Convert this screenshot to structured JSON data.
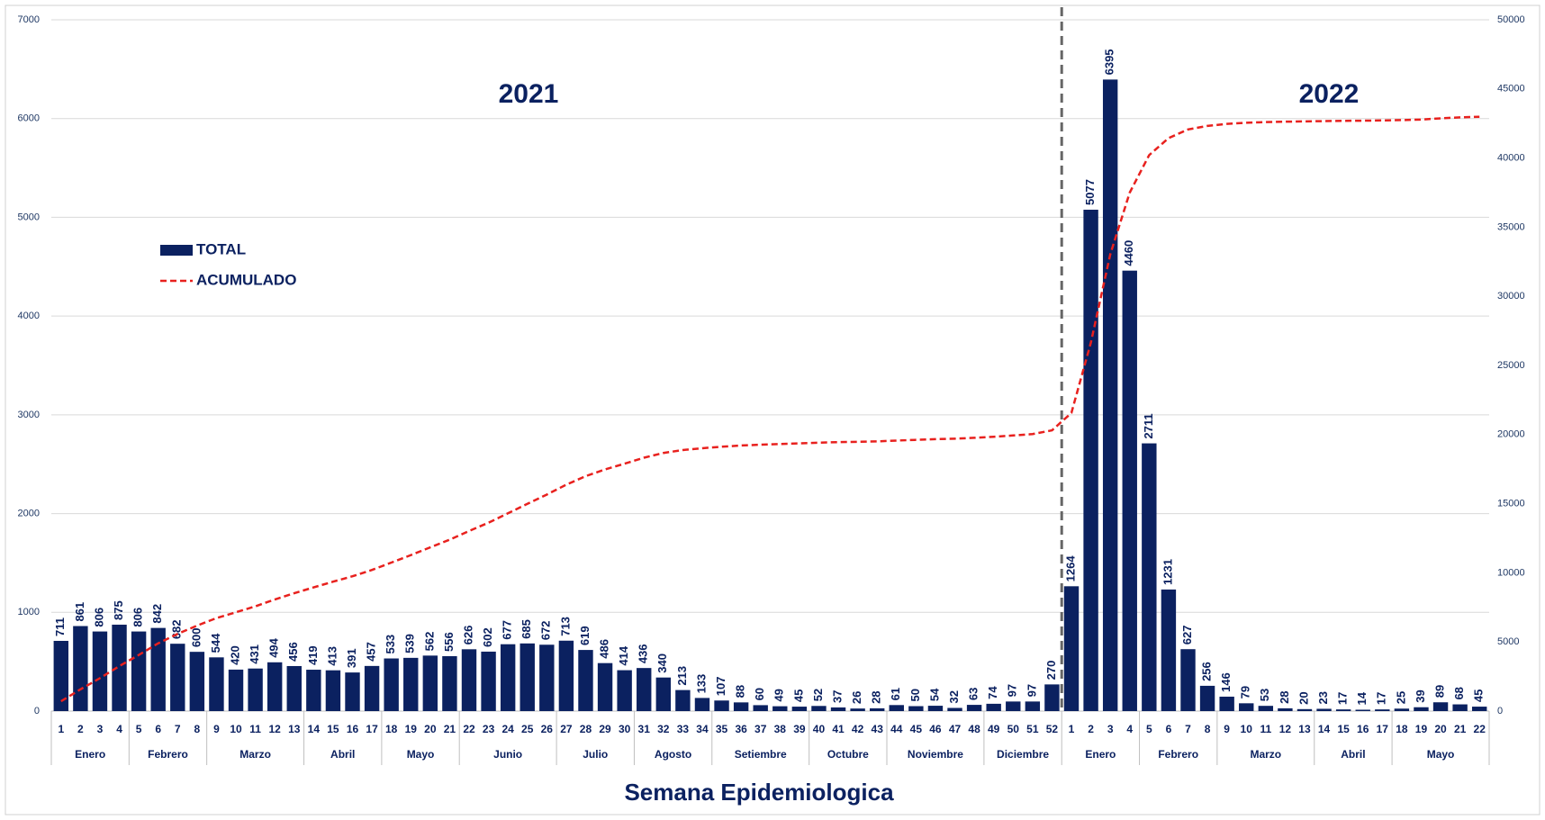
{
  "chart_data": {
    "type": "bar",
    "annotations": [
      "2021",
      "2022"
    ],
    "x_label": "Semana Epidemiologica",
    "categories": [
      "1",
      "2",
      "3",
      "4",
      "5",
      "6",
      "7",
      "8",
      "9",
      "10",
      "11",
      "12",
      "13",
      "14",
      "15",
      "16",
      "17",
      "18",
      "19",
      "20",
      "21",
      "22",
      "23",
      "24",
      "25",
      "26",
      "27",
      "28",
      "29",
      "30",
      "31",
      "32",
      "33",
      "34",
      "35",
      "36",
      "37",
      "38",
      "39",
      "40",
      "41",
      "42",
      "43",
      "44",
      "45",
      "46",
      "47",
      "48",
      "49",
      "50",
      "51",
      "52",
      "1",
      "2",
      "3",
      "4",
      "5",
      "6",
      "7",
      "8",
      "9",
      "10",
      "11",
      "12",
      "13",
      "14",
      "15",
      "16",
      "17",
      "18",
      "19",
      "20",
      "21",
      "22"
    ],
    "months": [
      "Enero",
      "Enero",
      "Enero",
      "Enero",
      "Febrero",
      "Febrero",
      "Febrero",
      "Febrero",
      "Marzo",
      "Marzo",
      "Marzo",
      "Marzo",
      "Marzo",
      "Abril",
      "Abril",
      "Abril",
      "Abril",
      "Mayo",
      "Mayo",
      "Mayo",
      "Mayo",
      "Junio",
      "Junio",
      "Junio",
      "Junio",
      "Junio",
      "Julio",
      "Julio",
      "Julio",
      "Julio",
      "Agosto",
      "Agosto",
      "Agosto",
      "Agosto",
      "Setiembre",
      "Setiembre",
      "Setiembre",
      "Setiembre",
      "Setiembre",
      "Octubre",
      "Octubre",
      "Octubre",
      "Octubre",
      "Noviembre",
      "Noviembre",
      "Noviembre",
      "Noviembre",
      "Noviembre",
      "Diciembre",
      "Diciembre",
      "Diciembre",
      "Diciembre",
      "Enero",
      "Enero",
      "Enero",
      "Enero",
      "Febrero",
      "Febrero",
      "Febrero",
      "Febrero",
      "Marzo",
      "Marzo",
      "Marzo",
      "Marzo",
      "Marzo",
      "Abril",
      "Abril",
      "Abril",
      "Abril",
      "Mayo",
      "Mayo",
      "Mayo",
      "Mayo",
      "Mayo"
    ],
    "series": [
      {
        "name": "TOTAL",
        "type": "bar",
        "color": "#0b2160",
        "values": [
          711,
          861,
          806,
          875,
          806,
          842,
          682,
          600,
          544,
          420,
          431,
          494,
          456,
          419,
          413,
          391,
          457,
          533,
          539,
          562,
          556,
          626,
          602,
          677,
          685,
          672,
          713,
          619,
          486,
          414,
          436,
          340,
          213,
          133,
          107,
          88,
          60,
          49,
          45,
          52,
          37,
          26,
          28,
          61,
          50,
          54,
          32,
          63,
          74,
          97,
          97,
          270,
          1264,
          5077,
          6395,
          4460,
          2711,
          1231,
          627,
          256,
          146,
          79,
          53,
          28,
          20,
          23,
          17,
          14,
          17,
          25,
          39,
          89,
          68,
          45
        ]
      },
      {
        "name": "ACUMULADO",
        "type": "line",
        "axis": "y2",
        "color": "#e8211e",
        "values": [
          711,
          1572,
          2378,
          3253,
          4059,
          4901,
          5583,
          6183,
          6727,
          7147,
          7578,
          8072,
          8528,
          8947,
          9360,
          9751,
          10208,
          10741,
          11280,
          11842,
          12398,
          13024,
          13626,
          14303,
          14988,
          15660,
          16373,
          16992,
          17478,
          17892,
          18328,
          18668,
          18881,
          19014,
          19121,
          19209,
          19269,
          19318,
          19363,
          19415,
          19452,
          19478,
          19506,
          19567,
          19617,
          19671,
          19703,
          19766,
          19840,
          19937,
          20034,
          20304,
          21568,
          26645,
          33040,
          37500,
          40211,
          41442,
          42069,
          42325,
          42471,
          42550,
          42603,
          42631,
          42651,
          42674,
          42691,
          42705,
          42722,
          42747,
          42786,
          42875,
          42943,
          42988
        ]
      }
    ],
    "ylim": [
      0,
      7000
    ],
    "yticks": [
      0,
      1000,
      2000,
      3000,
      4000,
      5000,
      6000,
      7000
    ],
    "y2lim": [
      0,
      50000
    ],
    "y2ticks": [
      0,
      5000,
      10000,
      15000,
      20000,
      25000,
      30000,
      35000,
      40000,
      45000,
      50000
    ],
    "grid": true,
    "legend": "upper left"
  }
}
